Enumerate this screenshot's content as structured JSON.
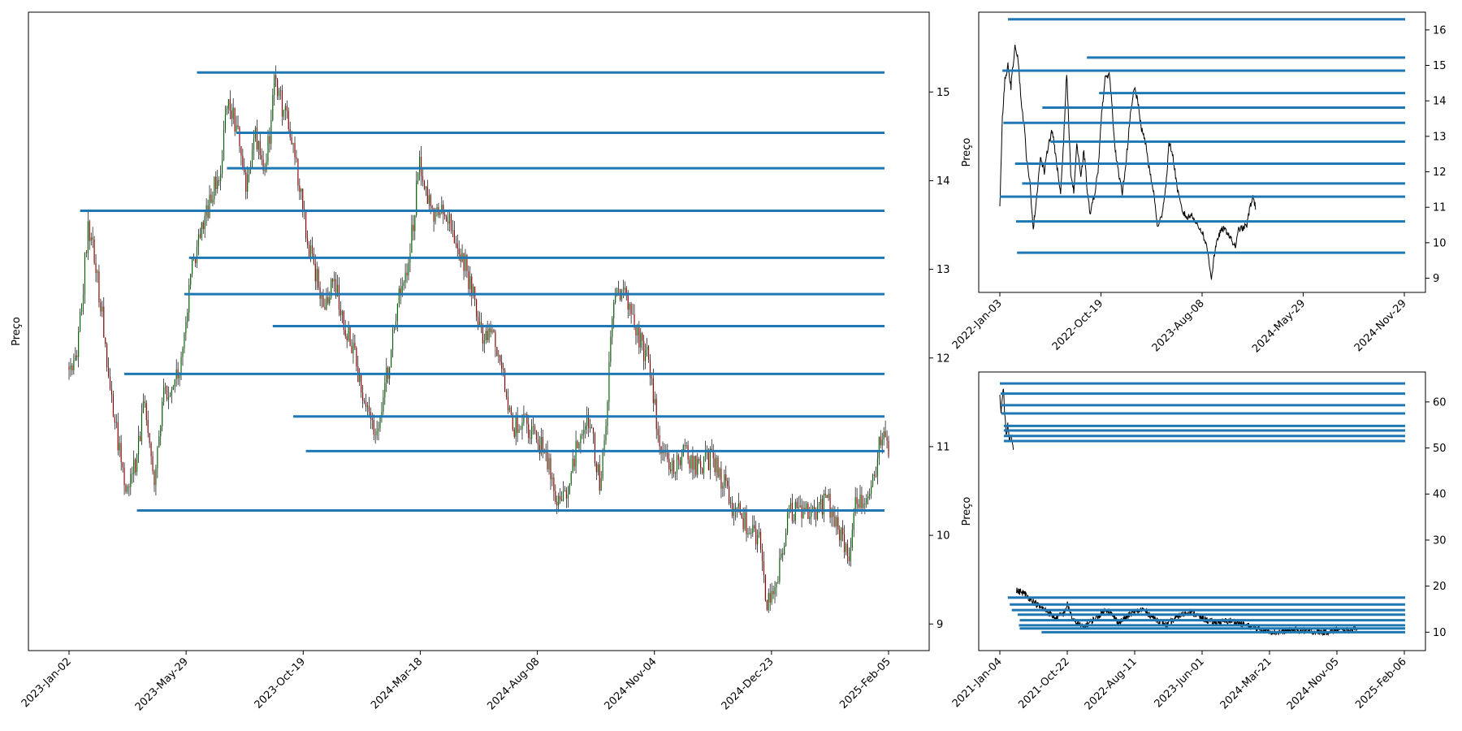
{
  "colors": {
    "level_line": "#1f77b4",
    "price_line": "#000000",
    "candle_up": "#006400",
    "candle_down": "#8b0000",
    "axes": "#000000",
    "background": "#ffffff"
  },
  "chart_data": [
    {
      "type": "candlestick",
      "panel": "main",
      "ylabel": "Preço",
      "xlabel": "",
      "title": "",
      "grid": false,
      "y_axis_side": "right",
      "xtick_labels": [
        "2023-Jan-02",
        "2023-May-29",
        "2023-Oct-19",
        "2024-Mar-18",
        "2024-Aug-08",
        "2024-Nov-04",
        "2024-Dec-23",
        "2025-Feb-05"
      ],
      "yticks": [
        9,
        10,
        11,
        12,
        13,
        14,
        15
      ],
      "ylim": [
        8.7,
        15.9
      ],
      "n_sessions": 520,
      "price_waypoints": [
        [
          0,
          11.9
        ],
        [
          6,
          12.2
        ],
        [
          12,
          13.5
        ],
        [
          18,
          12.9
        ],
        [
          24,
          12.0
        ],
        [
          30,
          11.2
        ],
        [
          36,
          10.5
        ],
        [
          42,
          10.8
        ],
        [
          48,
          11.5
        ],
        [
          54,
          10.5
        ],
        [
          60,
          11.6
        ],
        [
          66,
          11.6
        ],
        [
          72,
          12.1
        ],
        [
          78,
          13.0
        ],
        [
          84,
          13.4
        ],
        [
          90,
          13.8
        ],
        [
          96,
          14.2
        ],
        [
          100,
          14.9
        ],
        [
          106,
          14.6
        ],
        [
          112,
          14.0
        ],
        [
          118,
          14.5
        ],
        [
          124,
          14.0
        ],
        [
          130,
          15.1
        ],
        [
          136,
          14.8
        ],
        [
          142,
          14.4
        ],
        [
          150,
          13.4
        ],
        [
          156,
          13.0
        ],
        [
          162,
          12.5
        ],
        [
          168,
          12.9
        ],
        [
          174,
          12.4
        ],
        [
          180,
          12.1
        ],
        [
          186,
          11.6
        ],
        [
          192,
          11.2
        ],
        [
          196,
          11.1
        ],
        [
          202,
          11.9
        ],
        [
          210,
          12.8
        ],
        [
          216,
          13.2
        ],
        [
          222,
          14.2
        ],
        [
          228,
          13.7
        ],
        [
          234,
          13.6
        ],
        [
          240,
          13.6
        ],
        [
          246,
          13.3
        ],
        [
          252,
          13.0
        ],
        [
          258,
          12.5
        ],
        [
          264,
          12.2
        ],
        [
          270,
          12.2
        ],
        [
          276,
          11.7
        ],
        [
          282,
          11.2
        ],
        [
          288,
          11.3
        ],
        [
          294,
          11.1
        ],
        [
          300,
          11.0
        ],
        [
          306,
          10.6
        ],
        [
          312,
          10.3
        ],
        [
          318,
          10.7
        ],
        [
          324,
          11.2
        ],
        [
          330,
          11.3
        ],
        [
          336,
          10.6
        ],
        [
          340,
          11.3
        ],
        [
          344,
          12.5
        ],
        [
          348,
          12.8
        ],
        [
          354,
          12.6
        ],
        [
          360,
          12.3
        ],
        [
          366,
          12.0
        ],
        [
          372,
          11.3
        ],
        [
          378,
          10.8
        ],
        [
          384,
          10.8
        ],
        [
          390,
          10.9
        ],
        [
          396,
          10.8
        ],
        [
          402,
          10.8
        ],
        [
          408,
          10.9
        ],
        [
          414,
          10.6
        ],
        [
          420,
          10.3
        ],
        [
          426,
          10.2
        ],
        [
          432,
          10.0
        ],
        [
          438,
          9.9
        ],
        [
          442,
          9.2
        ],
        [
          446,
          9.3
        ],
        [
          450,
          9.7
        ],
        [
          456,
          10.2
        ],
        [
          462,
          10.4
        ],
        [
          468,
          10.2
        ],
        [
          474,
          10.3
        ],
        [
          480,
          10.4
        ],
        [
          486,
          10.2
        ],
        [
          490,
          9.9
        ],
        [
          494,
          9.8
        ],
        [
          498,
          10.3
        ],
        [
          504,
          10.4
        ],
        [
          510,
          10.6
        ],
        [
          514,
          11.1
        ],
        [
          519,
          11.0
        ]
      ],
      "levels": [
        {
          "price": 15.22,
          "start": 81
        },
        {
          "price": 14.54,
          "start": 106
        },
        {
          "price": 14.14,
          "start": 100
        },
        {
          "price": 13.66,
          "start": 7
        },
        {
          "price": 13.13,
          "start": 76
        },
        {
          "price": 12.72,
          "start": 73
        },
        {
          "price": 12.36,
          "start": 129
        },
        {
          "price": 11.82,
          "start": 35
        },
        {
          "price": 11.34,
          "start": 142
        },
        {
          "price": 10.95,
          "start": 150
        },
        {
          "price": 10.28,
          "start": 43
        }
      ]
    },
    {
      "type": "line",
      "panel": "top_right",
      "ylabel": "Preço",
      "xlabel": "",
      "title": "",
      "grid": false,
      "y_axis_side": "right",
      "xtick_labels": [
        "2022-Jan-03",
        "2022-Oct-19",
        "2023-Aug-08",
        "2024-May-29",
        "2024-Nov-29"
      ],
      "yticks": [
        9,
        10,
        11,
        12,
        13,
        14,
        15,
        16
      ],
      "ylim": [
        8.6,
        16.5
      ],
      "n_sessions": 800,
      "price_waypoints": [
        [
          0,
          11.0
        ],
        [
          5,
          13.5
        ],
        [
          10,
          14.6
        ],
        [
          16,
          15.0
        ],
        [
          22,
          14.4
        ],
        [
          30,
          15.6
        ],
        [
          36,
          15.2
        ],
        [
          42,
          14.0
        ],
        [
          48,
          13.3
        ],
        [
          54,
          12.2
        ],
        [
          60,
          11.6
        ],
        [
          66,
          10.4
        ],
        [
          72,
          11.2
        ],
        [
          80,
          12.4
        ],
        [
          88,
          12.0
        ],
        [
          96,
          12.8
        ],
        [
          104,
          13.2
        ],
        [
          112,
          12.2
        ],
        [
          120,
          11.4
        ],
        [
          126,
          12.9
        ],
        [
          132,
          14.8
        ],
        [
          140,
          12.0
        ],
        [
          146,
          11.4
        ],
        [
          152,
          12.8
        ],
        [
          160,
          11.8
        ],
        [
          166,
          12.6
        ],
        [
          172,
          11.6
        ],
        [
          178,
          10.8
        ],
        [
          186,
          11.3
        ],
        [
          194,
          12.0
        ],
        [
          200,
          13.5
        ],
        [
          208,
          14.6
        ],
        [
          216,
          14.8
        ],
        [
          222,
          13.8
        ],
        [
          228,
          12.6
        ],
        [
          236,
          11.8
        ],
        [
          242,
          11.4
        ],
        [
          250,
          12.4
        ],
        [
          258,
          13.6
        ],
        [
          266,
          14.4
        ],
        [
          272,
          14.0
        ],
        [
          280,
          13.2
        ],
        [
          288,
          12.8
        ],
        [
          296,
          12.0
        ],
        [
          304,
          11.4
        ],
        [
          312,
          10.4
        ],
        [
          320,
          10.8
        ],
        [
          328,
          11.6
        ],
        [
          334,
          12.8
        ],
        [
          340,
          12.6
        ],
        [
          346,
          12.0
        ],
        [
          352,
          11.4
        ],
        [
          360,
          10.9
        ],
        [
          370,
          10.7
        ],
        [
          380,
          10.8
        ],
        [
          390,
          10.5
        ],
        [
          400,
          10.3
        ],
        [
          410,
          9.8
        ],
        [
          418,
          9.0
        ],
        [
          424,
          9.7
        ],
        [
          432,
          10.2
        ],
        [
          440,
          10.4
        ],
        [
          450,
          10.3
        ],
        [
          460,
          10.0
        ],
        [
          466,
          9.9
        ],
        [
          472,
          10.4
        ],
        [
          480,
          10.4
        ],
        [
          488,
          10.5
        ],
        [
          494,
          11.0
        ],
        [
          500,
          11.3
        ],
        [
          505,
          11.0
        ]
      ],
      "levels": [
        {
          "price": 16.3,
          "start": 16
        },
        {
          "price": 15.22,
          "start": 172
        },
        {
          "price": 14.85,
          "start": 5
        },
        {
          "price": 14.22,
          "start": 196
        },
        {
          "price": 13.81,
          "start": 84
        },
        {
          "price": 13.38,
          "start": 7
        },
        {
          "price": 12.85,
          "start": 100
        },
        {
          "price": 12.23,
          "start": 30
        },
        {
          "price": 11.67,
          "start": 44
        },
        {
          "price": 11.3,
          "start": 0
        },
        {
          "price": 10.6,
          "start": 32
        },
        {
          "price": 9.72,
          "start": 34
        }
      ]
    },
    {
      "type": "line",
      "panel": "bottom_right",
      "ylabel": "Preço",
      "xlabel": "",
      "title": "",
      "grid": false,
      "y_axis_side": "right",
      "xtick_labels": [
        "2021-Jan-04",
        "2021-Oct-22",
        "2022-Aug-11",
        "2023-Jun-01",
        "2024-Mar-21",
        "2024-Nov-05",
        "2025-Feb-06"
      ],
      "yticks": [
        10,
        20,
        30,
        40,
        50,
        60
      ],
      "ylim": [
        6,
        66.5
      ],
      "n_sessions": 1020,
      "price_segments": [
        [
          [
            0,
            61.5
          ],
          [
            3,
            58.0
          ],
          [
            6,
            60.0
          ],
          [
            9,
            63.0
          ],
          [
            12,
            57.5
          ],
          [
            16,
            53.0
          ],
          [
            20,
            55.0
          ],
          [
            24,
            51.5
          ],
          [
            28,
            53.5
          ],
          [
            34,
            49.5
          ]
        ],
        [
          [
            42,
            19.0
          ],
          [
            60,
            18.5
          ],
          [
            80,
            17.0
          ],
          [
            100,
            15.5
          ],
          [
            120,
            14.5
          ],
          [
            140,
            13.0
          ],
          [
            160,
            14.0
          ],
          [
            170,
            16.0
          ],
          [
            185,
            12.5
          ],
          [
            210,
            11.0
          ],
          [
            240,
            13.0
          ],
          [
            270,
            15.0
          ],
          [
            300,
            12.0
          ],
          [
            330,
            14.0
          ],
          [
            360,
            15.0
          ],
          [
            390,
            13.0
          ],
          [
            420,
            11.5
          ],
          [
            450,
            13.5
          ],
          [
            480,
            14.5
          ],
          [
            510,
            13.0
          ],
          [
            540,
            12.0
          ],
          [
            580,
            12.5
          ],
          [
            620,
            11.5
          ],
          [
            660,
            10.5
          ],
          [
            700,
            10.0
          ],
          [
            740,
            10.5
          ],
          [
            780,
            10.2
          ],
          [
            820,
            10.0
          ],
          [
            850,
            10.5
          ],
          [
            880,
            10.4
          ],
          [
            900,
            11.0
          ]
        ]
      ],
      "levels": [
        {
          "price": 64.0,
          "start": 0
        },
        {
          "price": 61.8,
          "start": 2
        },
        {
          "price": 59.3,
          "start": 3
        },
        {
          "price": 57.5,
          "start": 4
        },
        {
          "price": 54.8,
          "start": 10
        },
        {
          "price": 53.8,
          "start": 10
        },
        {
          "price": 52.6,
          "start": 10
        },
        {
          "price": 51.5,
          "start": 10
        },
        {
          "price": 17.5,
          "start": 20
        },
        {
          "price": 16.0,
          "start": 25
        },
        {
          "price": 14.8,
          "start": 30
        },
        {
          "price": 13.8,
          "start": 45
        },
        {
          "price": 12.6,
          "start": 50
        },
        {
          "price": 11.5,
          "start": 48
        },
        {
          "price": 10.8,
          "start": 50
        },
        {
          "price": 10.0,
          "start": 105
        }
      ]
    }
  ]
}
